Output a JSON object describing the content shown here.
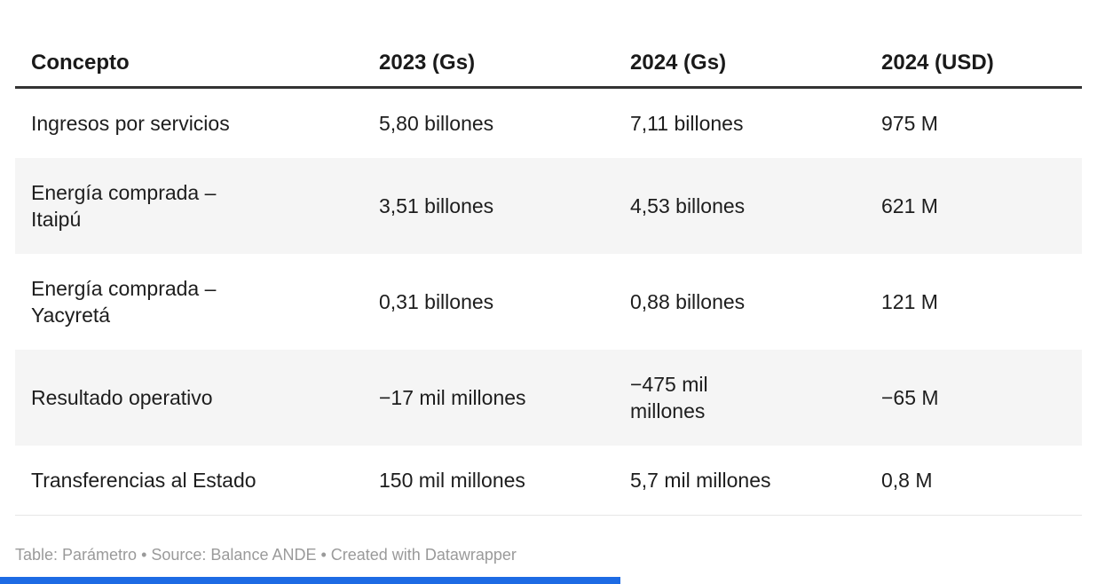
{
  "table": {
    "columns": [
      "Concepto",
      "2023 (Gs)",
      "2024 (Gs)",
      "2024 (USD)"
    ],
    "rows": [
      {
        "cells": [
          "Ingresos por servicios",
          "5,80 billones",
          "7,11 billones",
          "975 M"
        ]
      },
      {
        "cells": [
          "Energía comprada –\nItaipú",
          "3,51 billones",
          "4,53 billones",
          "621 M"
        ]
      },
      {
        "cells": [
          "Energía comprada –\nYacyretá",
          "0,31 billones",
          "0,88 billones",
          "121 M"
        ]
      },
      {
        "cells": [
          "Resultado operativo",
          "−17 mil millones",
          "−475 mil\nmillones",
          "−65 M"
        ]
      },
      {
        "cells": [
          "Transferencias al Estado",
          "150 mil millones",
          "5,7 mil millones",
          "0,8 M"
        ]
      }
    ]
  },
  "chart_data": {
    "type": "table",
    "columns": [
      "Concepto",
      "2023 (Gs)",
      "2024 (Gs)",
      "2024 (USD)"
    ],
    "rows": [
      [
        "Ingresos por servicios",
        "5,80 billones",
        "7,11 billones",
        "975 M"
      ],
      [
        "Energía comprada – Itaipú",
        "3,51 billones",
        "4,53 billones",
        "621 M"
      ],
      [
        "Energía comprada – Yacyretá",
        "0,31 billones",
        "0,88 billones",
        "121 M"
      ],
      [
        "Resultado operativo",
        "−17 mil millones",
        "−475 mil millones",
        "−65 M"
      ],
      [
        "Transferencias al Estado",
        "150 mil millones",
        "5,7 mil millones",
        "0,8 M"
      ]
    ],
    "layout_hints": {
      "striped_rows": [
        2,
        4
      ],
      "header_rule": true,
      "all_columns_left_aligned": true
    }
  },
  "footer": {
    "text": "Table: Parámetro • Source: Balance ANDE • Created with Datawrapper"
  },
  "colors": {
    "header_rule": "#333333",
    "stripe_background": "#f5f5f5",
    "body_text": "#1d1d1d",
    "footer_text": "#9a9a9a",
    "accent_bar": "#1d6be4",
    "bottom_rule": "#e7e7e7"
  }
}
